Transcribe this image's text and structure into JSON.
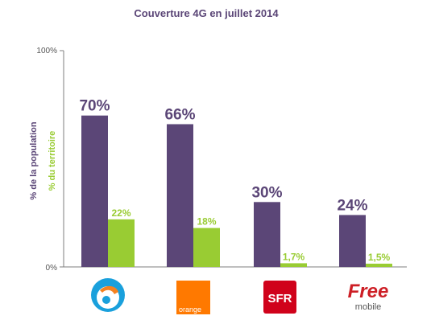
{
  "chart_data": {
    "type": "bar",
    "title": "Couverture 4G en juillet 2014",
    "categories": [
      "Bouygues Telecom",
      "Orange",
      "SFR",
      "Free Mobile"
    ],
    "series": [
      {
        "values": [
          70,
          66,
          30,
          24
        ],
        "labels": [
          "70%",
          "66%",
          "30%",
          "24%"
        ]
      },
      {
        "values": [
          22,
          18,
          1.7,
          1.5
        ],
        "labels": [
          "22%",
          "18%",
          "1,7%",
          "1,5%"
        ]
      }
    ],
    "ylabel_primary": "% de la population",
    "ylabel_secondary": "% du territoire",
    "ylim": [
      0,
      100
    ],
    "yticks": [
      "0%",
      "100%"
    ],
    "colors": {
      "population": "#5b4677",
      "territoire": "#99cc33",
      "title": "#5b4677"
    },
    "legend": "none",
    "grid": false
  },
  "logos": [
    {
      "icon": "bouygues-telecom-logo",
      "text": ""
    },
    {
      "icon": "orange-logo",
      "text": "orange"
    },
    {
      "icon": "sfr-logo",
      "text": "SFR"
    },
    {
      "icon": "free-mobile-logo",
      "text": "Free",
      "subtext": "mobile"
    }
  ]
}
